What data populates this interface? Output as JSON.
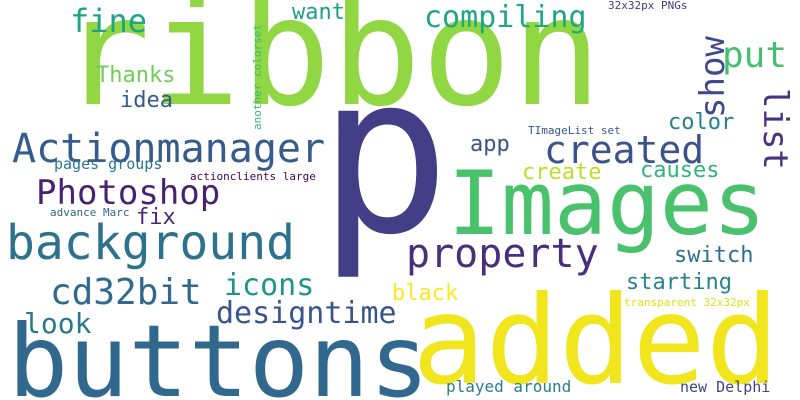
{
  "words": {
    "p": "p",
    "ribbon": "ribbon",
    "buttons": "buttons",
    "added": "added",
    "Images": "Images",
    "background": "background",
    "Actionmanager": "Actionmanager",
    "Photoshop": "Photoshop",
    "property": "property",
    "created": "created",
    "cd32bit": "cd32bit",
    "compiling": "compiling",
    "fine": "fine",
    "put": "put",
    "show": "show",
    "list": "list",
    "designtime": "designtime",
    "icons": "icons",
    "Thanks": "Thanks",
    "look": "look",
    "starting": "starting",
    "switch": "switch",
    "causes": "causes",
    "create": "create",
    "color": "color",
    "idea": "idea",
    "fix": "fix",
    "app": "app",
    "want": "want",
    "black": "black",
    "played_around": "played around",
    "new_Delphi": "new Delphi",
    "pages_groups": "pages groups",
    "actionclients_large": "actionclients large",
    "advance_Marc": "advance Marc",
    "TImageList_set": "TImageList set",
    "transparent_32x32px": "transparent 32x32px",
    "pngs_32x32px": "32x32px PNGs",
    "another_colorset": "another colorset"
  },
  "colors": {
    "p": "#433e85",
    "ribbon": "#90d743",
    "buttons": "#31688e",
    "added": "#f1e51d",
    "Images": "#4ac16d",
    "background": "#2c728e",
    "Actionmanager": "#365c8d",
    "Photoshop": "#482173",
    "property": "#472f7d",
    "created": "#3b528b",
    "cd32bit": "#31688e",
    "compiling": "#21a685",
    "fine": "#20a486",
    "put": "#44bf70",
    "show": "#3e4989",
    "list": "#463480",
    "designtime": "#39568c",
    "icons": "#1f948c",
    "Thanks": "#6ece58",
    "look": "#2a788e",
    "starting": "#25848e",
    "switch": "#2d708e",
    "causes": "#2fb47c",
    "create": "#bddf26",
    "color": "#277f8e",
    "idea": "#38598c",
    "fix": "#482878",
    "app": "#3b528b",
    "want": "#1fa088",
    "black": "#fde725",
    "played_around": "#287d8e",
    "new_Delphi": "#404387",
    "pages_groups": "#2a768e",
    "actionclients_large": "#440154",
    "advance_Marc": "#31688e",
    "TImageList_set": "#38588c",
    "transparent_32x32px": "#d8e219",
    "pngs_32x32px": "#443983",
    "another_colorset": "#35b779"
  }
}
